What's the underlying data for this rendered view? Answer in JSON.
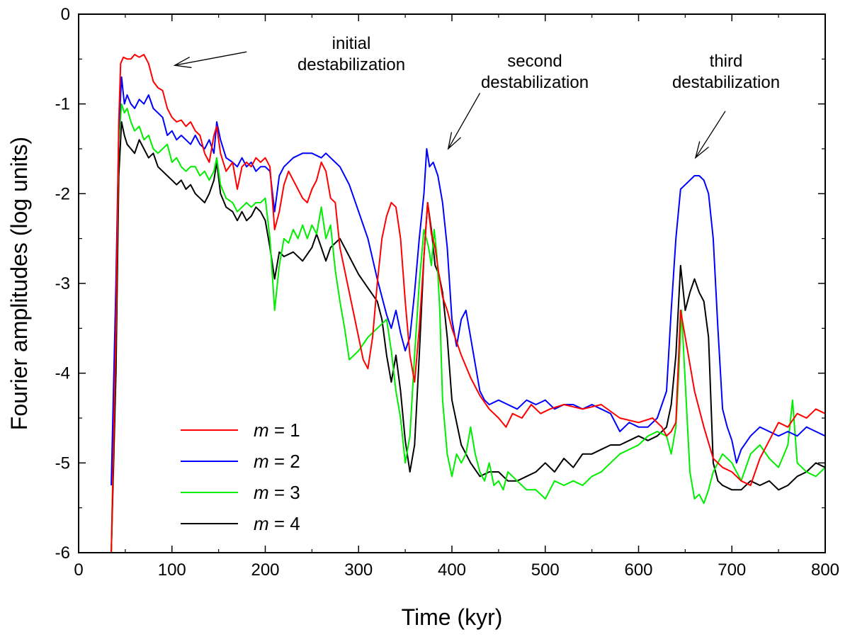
{
  "chart_data": {
    "type": "line",
    "xlabel": "Time (kyr)",
    "ylabel": "Fourier amplitudes (log units)",
    "xlim": [
      0,
      800
    ],
    "ylim": [
      -6,
      0
    ],
    "xticks": [
      0,
      100,
      200,
      300,
      400,
      500,
      600,
      700,
      800
    ],
    "yticks": [
      0,
      -1,
      -2,
      -3,
      -4,
      -5,
      -6
    ],
    "xtick_labels": [
      "0",
      "100",
      "200",
      "300",
      "400",
      "500",
      "600",
      "700",
      "800"
    ],
    "ytick_labels": [
      "0",
      "-1",
      "-2",
      "-3",
      "-4",
      "-5",
      "-6"
    ],
    "grid": false,
    "annotations": [
      {
        "lines": [
          "initial",
          "destabilization"
        ],
        "arrow_from": [
          180,
          -0.42
        ],
        "arrow_to": [
          103,
          -0.57
        ]
      },
      {
        "lines": [
          "second",
          "destabilization"
        ],
        "arrow_from": [
          430,
          -0.88
        ],
        "arrow_to": [
          396,
          -1.5
        ]
      },
      {
        "lines": [
          "third",
          "destabilization"
        ],
        "arrow_from": [
          693,
          -1.08
        ],
        "arrow_to": [
          661,
          -1.6
        ]
      }
    ],
    "legend": {
      "position": "lower-left",
      "prefix": "m",
      "suffix_template": " = "
    },
    "series": [
      {
        "name": "m = 1",
        "label_prefix": "m",
        "label_value": "1",
        "color": "#ff0000",
        "x": [
          35,
          40,
          43,
          45,
          48,
          52,
          56,
          60,
          65,
          70,
          75,
          80,
          85,
          90,
          95,
          100,
          105,
          110,
          115,
          120,
          125,
          130,
          135,
          140,
          145,
          148,
          152,
          158,
          165,
          170,
          175,
          180,
          185,
          190,
          195,
          200,
          205,
          210,
          215,
          220,
          225,
          230,
          235,
          240,
          245,
          250,
          255,
          260,
          265,
          270,
          275,
          280,
          290,
          300,
          305,
          310,
          315,
          320,
          325,
          330,
          335,
          340,
          345,
          350,
          355,
          360,
          365,
          370,
          374,
          378,
          382,
          386,
          390,
          395,
          400,
          410,
          420,
          430,
          440,
          450,
          458,
          465,
          475,
          485,
          495,
          505,
          520,
          540,
          560,
          580,
          600,
          615,
          625,
          630,
          635,
          640,
          645,
          650,
          660,
          670,
          680,
          690,
          700,
          710,
          720,
          730,
          740,
          750,
          760,
          770,
          780,
          790,
          800
        ],
        "values": [
          -6.0,
          -3.5,
          -1.2,
          -0.55,
          -0.48,
          -0.5,
          -0.5,
          -0.45,
          -0.48,
          -0.45,
          -0.55,
          -0.75,
          -0.82,
          -0.85,
          -1.05,
          -1.15,
          -1.2,
          -1.18,
          -1.25,
          -1.2,
          -1.3,
          -1.35,
          -1.55,
          -1.65,
          -1.35,
          -1.25,
          -1.55,
          -1.75,
          -1.65,
          -1.95,
          -1.7,
          -1.65,
          -1.7,
          -1.6,
          -1.65,
          -1.6,
          -1.7,
          -2.4,
          -2.2,
          -1.9,
          -1.75,
          -1.85,
          -1.95,
          -2.05,
          -2.1,
          -1.95,
          -1.85,
          -1.65,
          -1.75,
          -2.05,
          -2.1,
          -2.6,
          -3.1,
          -3.6,
          -3.85,
          -3.95,
          -3.6,
          -3.0,
          -2.5,
          -2.25,
          -2.1,
          -2.15,
          -2.5,
          -3.2,
          -3.8,
          -4.1,
          -3.5,
          -2.7,
          -2.1,
          -2.45,
          -2.6,
          -2.9,
          -3.15,
          -3.3,
          -3.5,
          -3.8,
          -4.05,
          -4.25,
          -4.4,
          -4.5,
          -4.6,
          -4.45,
          -4.5,
          -4.35,
          -4.45,
          -4.4,
          -4.35,
          -4.4,
          -4.35,
          -4.5,
          -4.55,
          -4.5,
          -4.6,
          -4.7,
          -4.65,
          -4.55,
          -3.3,
          -3.6,
          -4.2,
          -4.6,
          -4.95,
          -5.05,
          -5.1,
          -5.2,
          -5.25,
          -4.95,
          -4.75,
          -4.55,
          -4.6,
          -4.45,
          -4.5,
          -4.4,
          -4.45
        ]
      },
      {
        "name": "m = 2",
        "label_prefix": "m",
        "label_value": "2",
        "color": "#0000ff",
        "x": [
          35,
          40,
          43,
          46,
          49,
          52,
          56,
          60,
          65,
          70,
          75,
          80,
          85,
          90,
          95,
          100,
          105,
          110,
          115,
          120,
          125,
          130,
          135,
          140,
          145,
          148,
          152,
          158,
          165,
          170,
          175,
          180,
          185,
          190,
          195,
          200,
          205,
          210,
          215,
          220,
          230,
          240,
          250,
          260,
          265,
          270,
          275,
          280,
          290,
          300,
          310,
          320,
          330,
          335,
          340,
          345,
          350,
          355,
          360,
          365,
          370,
          373,
          376,
          380,
          385,
          390,
          395,
          400,
          405,
          410,
          415,
          420,
          425,
          430,
          435,
          440,
          450,
          460,
          470,
          480,
          490,
          500,
          510,
          520,
          530,
          540,
          550,
          560,
          570,
          580,
          590,
          600,
          610,
          620,
          630,
          635,
          640,
          645,
          650,
          655,
          660,
          665,
          670,
          675,
          680,
          685,
          690,
          695,
          700,
          705,
          710,
          720,
          730,
          740,
          750,
          760,
          770,
          780,
          790,
          800
        ],
        "values": [
          -5.25,
          -3.0,
          -1.3,
          -0.7,
          -1.0,
          -0.9,
          -1.0,
          -1.05,
          -0.95,
          -1.0,
          -0.9,
          -1.05,
          -1.1,
          -1.15,
          -1.35,
          -1.3,
          -1.4,
          -1.35,
          -1.4,
          -1.45,
          -1.35,
          -1.45,
          -1.5,
          -1.4,
          -1.55,
          -1.2,
          -1.4,
          -1.6,
          -1.65,
          -1.7,
          -1.6,
          -1.7,
          -1.65,
          -1.75,
          -1.7,
          -1.7,
          -1.75,
          -2.2,
          -1.8,
          -1.7,
          -1.6,
          -1.55,
          -1.55,
          -1.6,
          -1.55,
          -1.6,
          -1.65,
          -1.7,
          -1.9,
          -2.2,
          -2.5,
          -2.95,
          -3.35,
          -3.5,
          -3.3,
          -3.55,
          -3.75,
          -3.6,
          -3.1,
          -2.5,
          -2.0,
          -1.5,
          -1.7,
          -1.65,
          -1.8,
          -2.1,
          -2.6,
          -3.4,
          -3.7,
          -3.4,
          -3.3,
          -3.6,
          -3.9,
          -4.2,
          -4.3,
          -4.35,
          -4.3,
          -4.35,
          -4.4,
          -4.3,
          -4.35,
          -4.3,
          -4.4,
          -4.35,
          -4.35,
          -4.4,
          -4.35,
          -4.4,
          -4.45,
          -4.65,
          -4.55,
          -4.6,
          -4.6,
          -4.5,
          -4.2,
          -3.3,
          -2.5,
          -1.95,
          -1.9,
          -1.85,
          -1.8,
          -1.8,
          -1.85,
          -2.0,
          -2.5,
          -3.5,
          -4.4,
          -4.6,
          -4.75,
          -5.0,
          -4.85,
          -4.7,
          -4.6,
          -4.65,
          -4.7,
          -4.65,
          -4.7,
          -4.6,
          -4.65,
          -4.7
        ]
      },
      {
        "name": "m = 3",
        "label_prefix": "m",
        "label_value": "3",
        "color": "#00ee00",
        "x": [
          35,
          40,
          43,
          46,
          49,
          52,
          56,
          60,
          65,
          70,
          75,
          80,
          85,
          90,
          95,
          100,
          105,
          110,
          115,
          120,
          125,
          130,
          135,
          140,
          145,
          148,
          152,
          158,
          165,
          170,
          175,
          180,
          185,
          190,
          195,
          200,
          205,
          210,
          215,
          220,
          225,
          230,
          235,
          240,
          245,
          250,
          255,
          260,
          265,
          270,
          275,
          280,
          285,
          290,
          300,
          310,
          320,
          330,
          335,
          340,
          345,
          350,
          355,
          360,
          365,
          370,
          375,
          378,
          381,
          384,
          387,
          390,
          395,
          400,
          405,
          410,
          415,
          420,
          425,
          430,
          435,
          440,
          445,
          450,
          455,
          460,
          470,
          480,
          490,
          500,
          510,
          520,
          530,
          540,
          550,
          560,
          570,
          580,
          590,
          600,
          610,
          620,
          630,
          635,
          640,
          643,
          646,
          650,
          655,
          660,
          665,
          670,
          675,
          680,
          690,
          700,
          710,
          720,
          730,
          740,
          750,
          760,
          765,
          770,
          780,
          790,
          800
        ],
        "values": [
          -6.0,
          -3.5,
          -1.4,
          -1.0,
          -1.1,
          -1.05,
          -1.2,
          -1.3,
          -1.25,
          -1.4,
          -1.35,
          -1.5,
          -1.55,
          -1.5,
          -1.45,
          -1.65,
          -1.6,
          -1.7,
          -1.75,
          -1.7,
          -1.7,
          -1.8,
          -1.75,
          -1.85,
          -1.75,
          -1.6,
          -1.9,
          -2.05,
          -2.1,
          -2.2,
          -2.15,
          -2.1,
          -2.15,
          -2.1,
          -2.1,
          -2.05,
          -2.5,
          -3.3,
          -2.8,
          -2.5,
          -2.55,
          -2.4,
          -2.5,
          -2.35,
          -2.5,
          -2.35,
          -2.45,
          -2.15,
          -2.5,
          -2.35,
          -2.85,
          -3.2,
          -3.5,
          -3.85,
          -3.75,
          -3.6,
          -3.5,
          -3.4,
          -3.75,
          -4.2,
          -4.5,
          -5.0,
          -4.7,
          -3.8,
          -3.0,
          -2.4,
          -2.6,
          -2.8,
          -2.4,
          -2.7,
          -3.3,
          -4.3,
          -4.9,
          -5.15,
          -4.9,
          -5.0,
          -4.9,
          -4.6,
          -4.9,
          -5.1,
          -5.2,
          -5.0,
          -5.25,
          -5.2,
          -5.3,
          -5.1,
          -5.2,
          -5.3,
          -5.3,
          -5.4,
          -5.2,
          -5.25,
          -5.2,
          -5.25,
          -5.15,
          -5.1,
          -5.0,
          -4.9,
          -4.85,
          -4.8,
          -4.7,
          -4.65,
          -4.7,
          -4.9,
          -4.6,
          -4.0,
          -3.3,
          -4.1,
          -5.1,
          -5.4,
          -5.35,
          -5.45,
          -5.3,
          -5.1,
          -4.9,
          -5.0,
          -5.2,
          -4.9,
          -4.8,
          -4.95,
          -5.05,
          -4.8,
          -4.3,
          -5.0,
          -5.1,
          -5.15,
          -5.05
        ]
      },
      {
        "name": "m = 4",
        "label_prefix": "m",
        "label_value": "4",
        "color": "#000000",
        "x": [
          35,
          40,
          43,
          46,
          49,
          52,
          56,
          60,
          65,
          70,
          75,
          80,
          85,
          90,
          95,
          100,
          105,
          110,
          115,
          120,
          125,
          130,
          135,
          140,
          145,
          148,
          152,
          158,
          165,
          170,
          175,
          180,
          185,
          190,
          195,
          200,
          205,
          210,
          215,
          220,
          230,
          240,
          250,
          255,
          260,
          265,
          270,
          275,
          280,
          290,
          300,
          310,
          320,
          325,
          330,
          335,
          340,
          345,
          350,
          355,
          360,
          365,
          370,
          374,
          378,
          382,
          386,
          390,
          395,
          400,
          410,
          420,
          430,
          440,
          450,
          460,
          470,
          480,
          490,
          500,
          510,
          520,
          530,
          540,
          550,
          560,
          570,
          580,
          590,
          600,
          610,
          620,
          630,
          635,
          640,
          645,
          650,
          655,
          660,
          665,
          670,
          675,
          680,
          685,
          690,
          700,
          710,
          720,
          730,
          740,
          750,
          760,
          770,
          780,
          790,
          800
        ],
        "values": [
          -6.0,
          -4.0,
          -1.8,
          -1.2,
          -1.35,
          -1.45,
          -1.5,
          -1.55,
          -1.4,
          -1.5,
          -1.6,
          -1.55,
          -1.7,
          -1.75,
          -1.8,
          -1.85,
          -1.9,
          -1.85,
          -1.95,
          -1.9,
          -2.0,
          -2.05,
          -2.1,
          -2.0,
          -1.85,
          -1.65,
          -2.0,
          -2.15,
          -2.2,
          -2.3,
          -2.2,
          -2.3,
          -2.25,
          -2.15,
          -2.2,
          -2.3,
          -2.6,
          -2.95,
          -2.65,
          -2.7,
          -2.65,
          -2.75,
          -2.6,
          -2.45,
          -2.6,
          -2.75,
          -2.6,
          -2.55,
          -2.5,
          -2.7,
          -2.9,
          -3.05,
          -3.2,
          -3.4,
          -3.8,
          -4.1,
          -3.8,
          -4.2,
          -4.75,
          -5.1,
          -4.8,
          -3.8,
          -2.7,
          -2.1,
          -2.4,
          -2.8,
          -2.9,
          -3.1,
          -3.6,
          -4.3,
          -4.8,
          -5.0,
          -5.15,
          -5.1,
          -5.1,
          -5.2,
          -5.2,
          -5.15,
          -5.1,
          -5.0,
          -5.1,
          -4.95,
          -5.05,
          -4.9,
          -4.9,
          -4.85,
          -4.8,
          -4.8,
          -4.75,
          -4.7,
          -4.75,
          -4.7,
          -4.6,
          -4.35,
          -3.8,
          -2.8,
          -3.3,
          -3.1,
          -2.95,
          -3.1,
          -3.2,
          -3.6,
          -5.0,
          -5.2,
          -5.25,
          -5.3,
          -5.3,
          -5.2,
          -5.25,
          -5.2,
          -5.3,
          -5.25,
          -5.15,
          -5.1,
          -5.0,
          -5.05
        ]
      }
    ]
  }
}
